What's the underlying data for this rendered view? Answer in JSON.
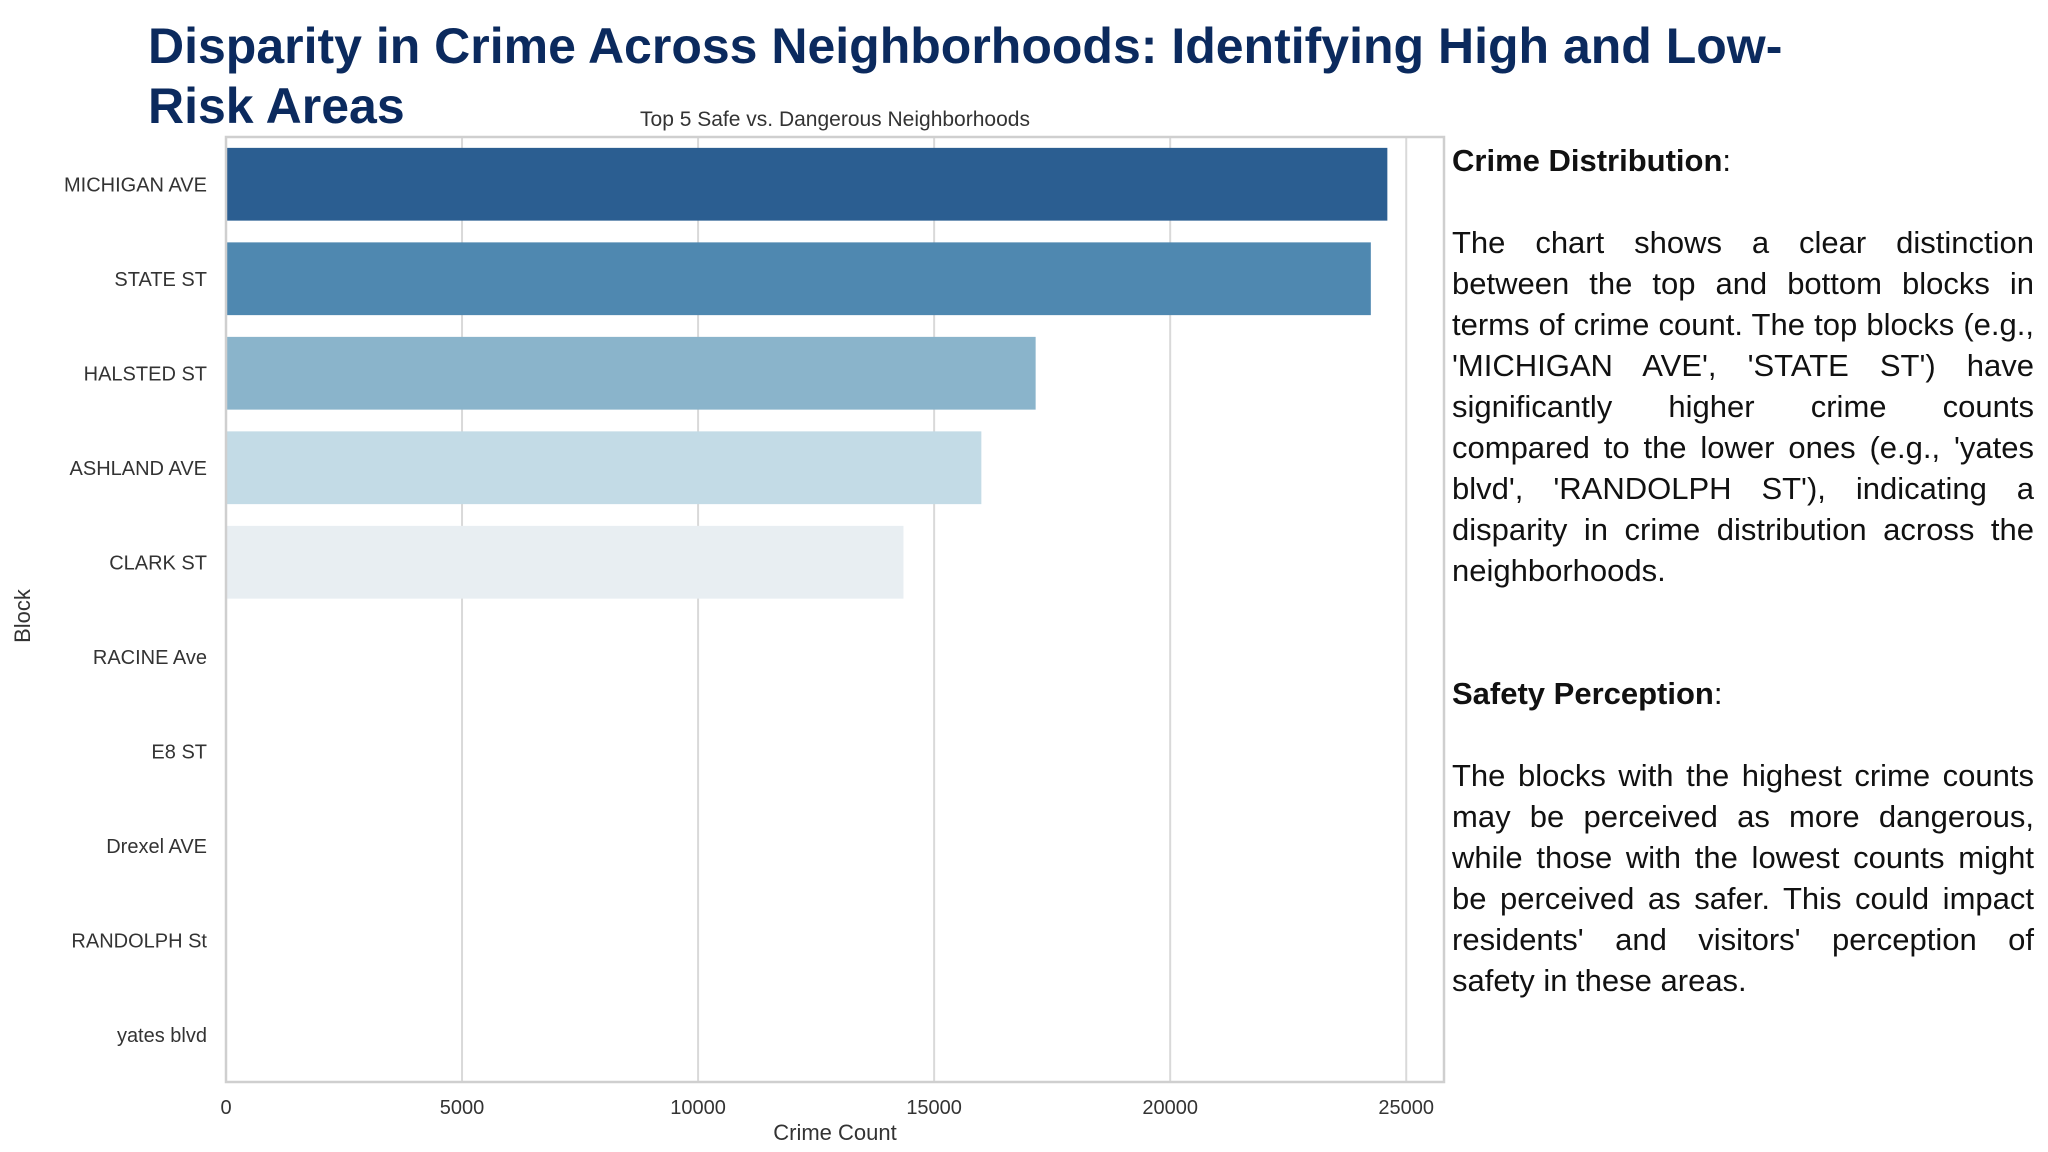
{
  "slide": {
    "title": "Disparity in Crime Across Neighborhoods: Identifying High and Low-Risk Areas"
  },
  "chart_data": {
    "type": "bar",
    "orientation": "horizontal",
    "title": "Top 5 Safe vs. Dangerous Neighborhoods",
    "xlabel": "Crime Count",
    "ylabel": "Block",
    "categories": [
      "MICHIGAN AVE",
      "STATE ST",
      "HALSTED ST",
      "ASHLAND AVE",
      "CLARK ST",
      "RACINE Ave",
      "E8 ST",
      "Drexel AVE",
      "RANDOLPH St",
      "yates blvd"
    ],
    "values": [
      24600,
      24250,
      17150,
      16000,
      14350,
      1,
      1,
      1,
      1,
      1
    ],
    "colors": [
      "#2b5e91",
      "#4f88b0",
      "#8ab4cb",
      "#c3dbe6",
      "#e8eef2",
      "#ffffff",
      "#ffffff",
      "#ffffff",
      "#ffffff",
      "#ffffff"
    ],
    "xlim": [
      0,
      25800
    ],
    "xticks": [
      0,
      5000,
      10000,
      15000,
      20000,
      25000
    ],
    "grid": "vertical"
  },
  "notes": {
    "section1": {
      "heading": "Crime Distribution",
      "suffix": ":",
      "body": "The chart shows a clear distinction between the top and bottom blocks in terms of crime count. The top blocks (e.g., 'MICHIGAN AVE', 'STATE ST') have significantly higher crime counts compared to the lower ones (e.g., 'yates blvd', 'RANDOLPH ST'), indicating a disparity in crime distribution across the neighborhoods."
    },
    "section2": {
      "heading": "Safety Perception",
      "suffix": ":",
      "body": "The blocks with the highest crime counts may be perceived as more dangerous, while those with the lowest counts might be perceived as safer. This could impact residents' and visitors' perception of safety in these areas."
    }
  }
}
